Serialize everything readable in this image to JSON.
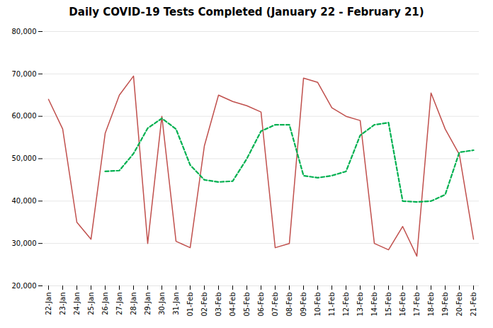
{
  "chart_data": {
    "type": "line",
    "title": "Daily COVID-19 Tests Completed (January 22 - February 21)",
    "categories": [
      "22-Jan",
      "23-Jan",
      "24-Jan",
      "25-Jan",
      "26-Jan",
      "27-Jan",
      "28-Jan",
      "29-Jan",
      "30-Jan",
      "31-Jan",
      "01-Feb",
      "02-Feb",
      "03-Feb",
      "04-Feb",
      "05-Feb",
      "06-Feb",
      "07-Feb",
      "08-Feb",
      "09-Feb",
      "10-Feb",
      "11-Feb",
      "12-Feb",
      "13-Feb",
      "14-Feb",
      "15-Feb",
      "16-Feb",
      "17-Feb",
      "18-Feb",
      "19-Feb",
      "20-Feb",
      "21-Feb"
    ],
    "series": [
      {
        "color": "#c0504d",
        "line_style": "solid",
        "values": [
          64000,
          57000,
          35000,
          31000,
          56000,
          65000,
          69500,
          30000,
          60000,
          30500,
          29000,
          53000,
          65000,
          63500,
          62500,
          61000,
          29000,
          30000,
          69000,
          68000,
          62000,
          60000,
          59000,
          30000,
          28500,
          34000,
          27000,
          65500,
          57000,
          51000,
          31000
        ]
      },
      {
        "color": "#00b050",
        "line_style": "dashed",
        "values": [
          null,
          null,
          null,
          null,
          47000,
          47200,
          51200,
          57200,
          59500,
          57000,
          48500,
          45000,
          44500,
          44700,
          50000,
          56500,
          58000,
          58000,
          46000,
          45500,
          46000,
          47000,
          55500,
          58000,
          58500,
          40000,
          39800,
          40000,
          41500,
          51500,
          52000
        ]
      }
    ],
    "ylim": [
      20000,
      80000
    ],
    "yticks": [
      {
        "value": 20000,
        "label": "20,000"
      },
      {
        "value": 30000,
        "label": "30,000"
      },
      {
        "value": 40000,
        "label": "40,000"
      },
      {
        "value": 50000,
        "label": "50,000"
      },
      {
        "value": 60000,
        "label": "60,000"
      },
      {
        "value": 70000,
        "label": "70,000"
      },
      {
        "value": 80000,
        "label": "80,000"
      }
    ],
    "grid": true
  }
}
